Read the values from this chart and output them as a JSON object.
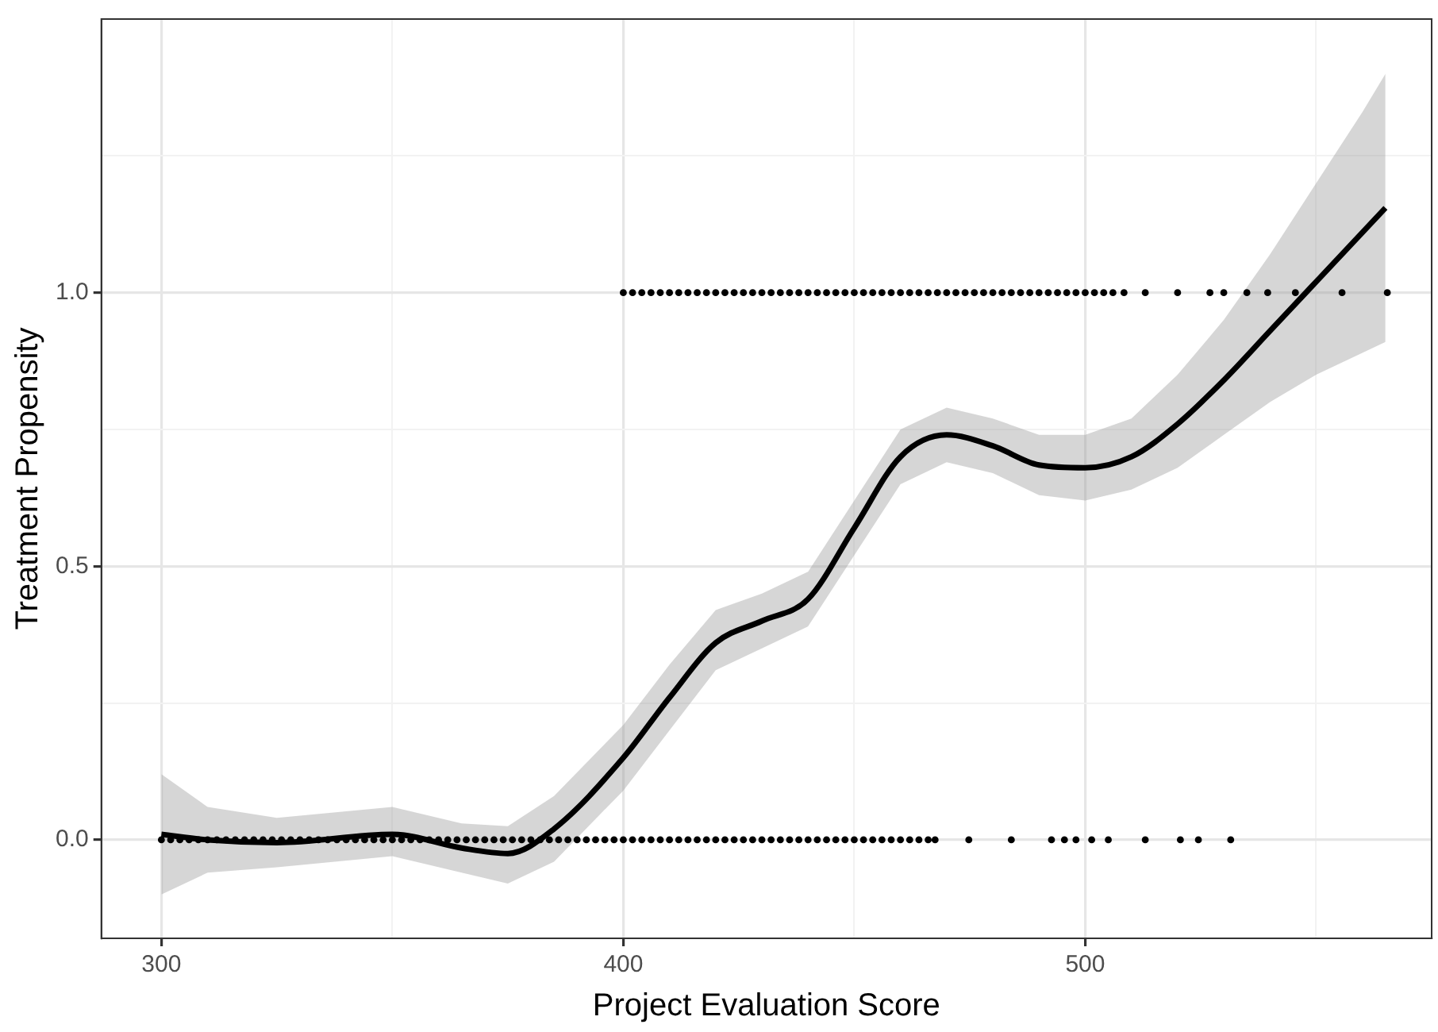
{
  "chart_data": {
    "type": "scatter",
    "xlabel": "Project Evaluation Score",
    "ylabel": "Treatment Propensity",
    "xlim": [
      287,
      575
    ],
    "ylim": [
      -0.18,
      1.5
    ],
    "xticks": [
      300,
      {
        "value": 350,
        "label": null
      },
      400,
      {
        "value": 450,
        "label": null
      },
      500,
      {
        "value": 550,
        "label": null
      }
    ],
    "yticks": [
      {
        "value": 0,
        "label": "0.0"
      },
      {
        "value": 0.25,
        "label": null
      },
      {
        "value": 0.5,
        "label": "0.5"
      },
      {
        "value": 0.75,
        "label": null
      },
      {
        "value": 1,
        "label": "1.0"
      },
      {
        "value": 1.25,
        "label": null
      }
    ],
    "grid": true,
    "legend": false,
    "series": [
      {
        "type": "scatter",
        "color": "#000000",
        "marker": "circle",
        "x": [
          300,
          302,
          304,
          306,
          308,
          310,
          312,
          314,
          316,
          318,
          320,
          322,
          324,
          326,
          328,
          330,
          332,
          334,
          336,
          338,
          340,
          342,
          344,
          346,
          348,
          350,
          352,
          354,
          356,
          358,
          360,
          362,
          364,
          366,
          368,
          370,
          372,
          374,
          376,
          378,
          380,
          382,
          384,
          386,
          388,
          390,
          392,
          394,
          396,
          398,
          400,
          402,
          404,
          406,
          408,
          410,
          412,
          414,
          416,
          418,
          420,
          422,
          424,
          426,
          428,
          430,
          432,
          434,
          436,
          438,
          440,
          442,
          444,
          446,
          448,
          450,
          452,
          454,
          456,
          458,
          460,
          462,
          464,
          466,
          467.5,
          474.8,
          484,
          492.7,
          495.5,
          498,
          501.4,
          505,
          513,
          520.6,
          524.5,
          531.5,
          400,
          402,
          404,
          406,
          408,
          410,
          412,
          414,
          416,
          418,
          420,
          422,
          424,
          426,
          428,
          430,
          432,
          434,
          436,
          438,
          440,
          442,
          444,
          446,
          448,
          450,
          452,
          454,
          456,
          458,
          460,
          462,
          464,
          466,
          468,
          470,
          472,
          474,
          476,
          478,
          480,
          482,
          484,
          486,
          488,
          490,
          492,
          494,
          496,
          498,
          500,
          502,
          504,
          506,
          508.4,
          513,
          520,
          527,
          530,
          535,
          539.5,
          545.5,
          555.6,
          565.4
        ],
        "values": [
          0,
          0,
          0,
          0,
          0,
          0,
          0,
          0,
          0,
          0,
          0,
          0,
          0,
          0,
          0,
          0,
          0,
          0,
          0,
          0,
          0,
          0,
          0,
          0,
          0,
          0,
          0,
          0,
          0,
          0,
          0,
          0,
          0,
          0,
          0,
          0,
          0,
          0,
          0,
          0,
          0,
          0,
          0,
          0,
          0,
          0,
          0,
          0,
          0,
          0,
          0,
          0,
          0,
          0,
          0,
          0,
          0,
          0,
          0,
          0,
          0,
          0,
          0,
          0,
          0,
          0,
          0,
          0,
          0,
          0,
          0,
          0,
          0,
          0,
          0,
          0,
          0,
          0,
          0,
          0,
          0,
          0,
          0,
          0,
          0,
          0,
          0,
          0,
          0,
          0,
          0,
          0,
          0,
          0,
          0,
          0,
          1,
          1,
          1,
          1,
          1,
          1,
          1,
          1,
          1,
          1,
          1,
          1,
          1,
          1,
          1,
          1,
          1,
          1,
          1,
          1,
          1,
          1,
          1,
          1,
          1,
          1,
          1,
          1,
          1,
          1,
          1,
          1,
          1,
          1,
          1,
          1,
          1,
          1,
          1,
          1,
          1,
          1,
          1,
          1,
          1,
          1,
          1,
          1,
          1,
          1,
          1,
          1,
          1,
          1,
          1,
          1,
          1,
          1,
          1,
          1,
          1,
          1,
          1,
          1
        ]
      },
      {
        "type": "line",
        "color": "#000000",
        "marker": "none",
        "x": [
          300,
          310,
          325,
          350,
          365,
          375,
          385,
          400,
          410,
          420,
          430,
          440,
          450,
          460,
          470,
          480,
          490,
          500,
          510,
          520,
          530,
          540,
          550,
          560,
          565
        ],
        "values": [
          0.01,
          0,
          -0.005,
          0.01,
          -0.015,
          -0.025,
          0.02,
          0.15,
          0.26,
          0.36,
          0.4,
          0.44,
          0.57,
          0.7,
          0.74,
          0.72,
          0.685,
          0.68,
          0.7,
          0.76,
          0.84,
          0.93,
          1.02,
          1.11,
          1.155
        ],
        "lower": [
          -0.1,
          -0.06,
          -0.05,
          -0.03,
          -0.06,
          -0.08,
          -0.04,
          0.09,
          0.2,
          0.31,
          0.35,
          0.39,
          0.52,
          0.65,
          0.69,
          0.67,
          0.63,
          0.62,
          0.64,
          0.68,
          0.74,
          0.8,
          0.85,
          0.89,
          0.91
        ],
        "upper": [
          0.12,
          0.06,
          0.04,
          0.06,
          0.03,
          0.025,
          0.08,
          0.21,
          0.32,
          0.42,
          0.45,
          0.49,
          0.62,
          0.75,
          0.79,
          0.77,
          0.74,
          0.74,
          0.77,
          0.85,
          0.95,
          1.07,
          1.2,
          1.33,
          1.4
        ]
      }
    ]
  }
}
